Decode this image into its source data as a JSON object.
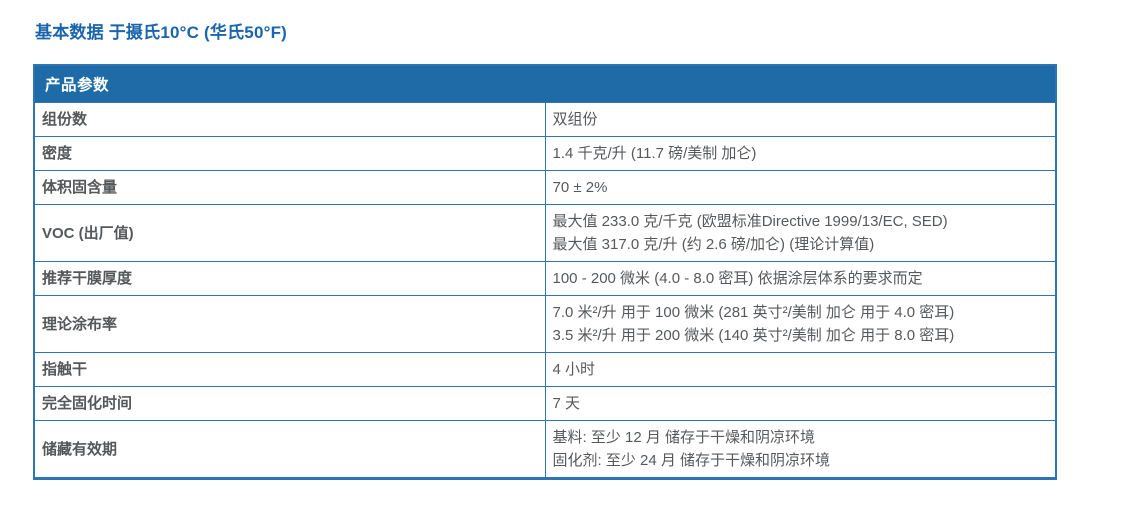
{
  "page_title": "基本数据 于摄氏10°C (华氏50°F)",
  "table": {
    "header": "产品参数",
    "rows": [
      {
        "label": "组份数",
        "value_lines": [
          "双组份"
        ]
      },
      {
        "label": "密度",
        "value_lines": [
          "1.4 千克/升 (11.7 磅/美制 加仑)"
        ]
      },
      {
        "label": "体积固含量",
        "value_lines": [
          "70 ± 2%"
        ]
      },
      {
        "label": "VOC (出厂值)",
        "value_lines": [
          "最大值 233.0 克/千克 (欧盟标准Directive 1999/13/EC, SED)",
          "最大值 317.0 克/升 (约 2.6 磅/加仑) (理论计算值)"
        ]
      },
      {
        "label": "推荐干膜厚度",
        "value_lines": [
          "100 - 200 微米 (4.0 - 8.0 密耳) 依据涂层体系的要求而定"
        ]
      },
      {
        "label": "理论涂布率",
        "value_lines": [
          "7.0 米²/升 用于 100 微米 (281 英寸²/美制 加仑 用于 4.0 密耳)",
          "3.5 米²/升 用于 200 微米 (140 英寸²/美制 加仑 用于 8.0 密耳)"
        ]
      },
      {
        "label": "指触干",
        "value_lines": [
          "4 小时"
        ]
      },
      {
        "label": "完全固化时间",
        "value_lines": [
          "7 天"
        ]
      },
      {
        "label": "储藏有效期",
        "value_lines": [
          "基料: 至少 12 月 储存于干燥和阴凉环境",
          "固化剂: 至少 24 月 储存于干燥和阴凉环境"
        ]
      }
    ]
  },
  "colors": {
    "title_blue": "#1a65ac",
    "band_blue": "#1e6ba8",
    "border_blue": "#2e75b6",
    "text_gray": "#56595c"
  }
}
